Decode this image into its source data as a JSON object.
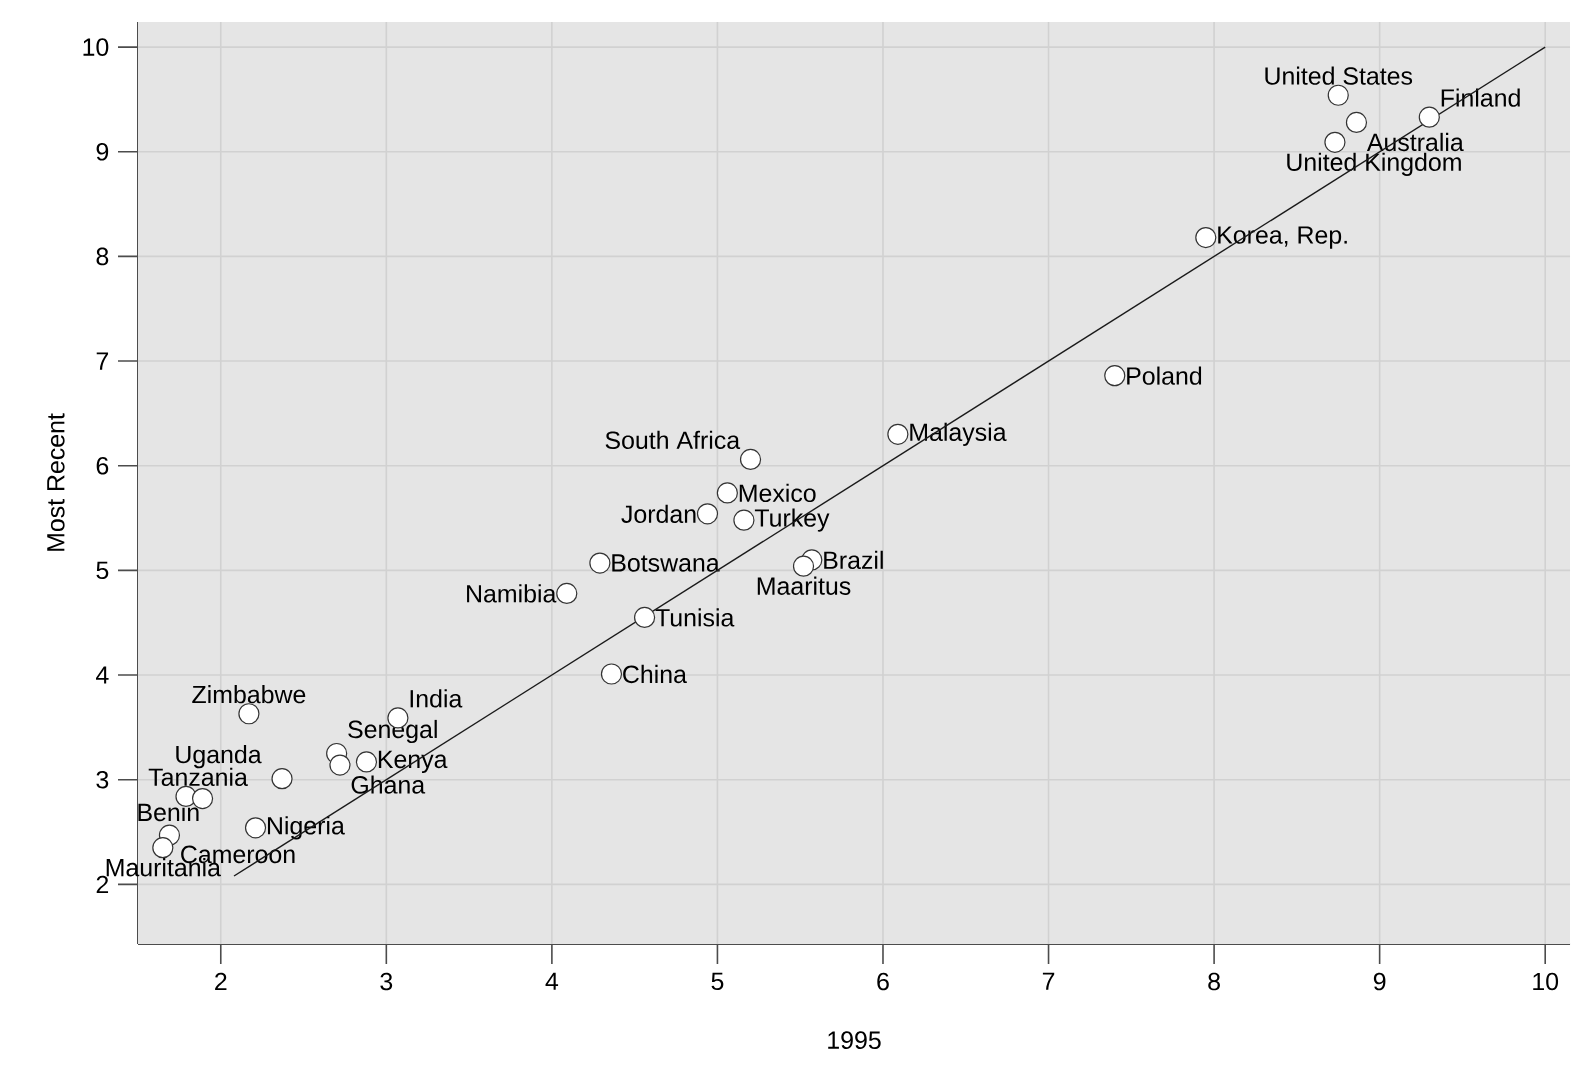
{
  "chart_data": {
    "type": "scatter",
    "xlabel": "1995",
    "ylabel": "Most Recent",
    "xlim": [
      1.5,
      10.15
    ],
    "ylim": [
      1.43,
      10.24
    ],
    "xticks": [
      2,
      3,
      4,
      5,
      6,
      7,
      8,
      9,
      10
    ],
    "yticks": [
      2,
      3,
      4,
      5,
      6,
      7,
      8,
      9,
      10
    ],
    "grid": true,
    "series": [
      {
        "name": "United States",
        "color": "#ffffff",
        "marker": "circle",
        "x": [
          8.75
        ],
        "values": [
          9.54
        ]
      },
      {
        "name": "Finland",
        "color": "#ffffff",
        "marker": "circle",
        "x": [
          9.3
        ],
        "values": [
          9.33
        ]
      },
      {
        "name": "Australia",
        "color": "#ffffff",
        "marker": "circle",
        "x": [
          8.86
        ],
        "values": [
          9.28
        ]
      },
      {
        "name": "United Kingdom",
        "color": "#ffffff",
        "marker": "circle",
        "x": [
          8.73
        ],
        "values": [
          9.09
        ]
      },
      {
        "name": "Korea, Rep.",
        "color": "#ffffff",
        "marker": "circle",
        "x": [
          7.95
        ],
        "values": [
          8.18
        ]
      },
      {
        "name": "Poland",
        "color": "#ffffff",
        "marker": "circle",
        "x": [
          7.4
        ],
        "values": [
          6.86
        ]
      },
      {
        "name": "Malaysia",
        "color": "#ffffff",
        "marker": "circle",
        "x": [
          6.09
        ],
        "values": [
          6.3
        ]
      },
      {
        "name": "South Africa",
        "color": "#ffffff",
        "marker": "circle",
        "x": [
          5.2
        ],
        "values": [
          6.06
        ]
      },
      {
        "name": "Mexico",
        "color": "#ffffff",
        "marker": "circle",
        "x": [
          5.06
        ],
        "values": [
          5.74
        ]
      },
      {
        "name": "Jordan",
        "color": "#ffffff",
        "marker": "circle",
        "x": [
          4.94
        ],
        "values": [
          5.54
        ]
      },
      {
        "name": "Turkey",
        "color": "#ffffff",
        "marker": "circle",
        "x": [
          5.16
        ],
        "values": [
          5.48
        ]
      },
      {
        "name": "Botswana",
        "color": "#ffffff",
        "marker": "circle",
        "x": [
          4.29
        ],
        "values": [
          5.07
        ]
      },
      {
        "name": "Brazil",
        "color": "#ffffff",
        "marker": "circle",
        "x": [
          5.57
        ],
        "values": [
          5.1
        ]
      },
      {
        "name": "Maaritus",
        "color": "#ffffff",
        "marker": "circle",
        "x": [
          5.52
        ],
        "values": [
          5.04
        ]
      },
      {
        "name": "Namibia",
        "color": "#ffffff",
        "marker": "circle",
        "x": [
          4.09
        ],
        "values": [
          4.78
        ]
      },
      {
        "name": "Tunisia",
        "color": "#ffffff",
        "marker": "circle",
        "x": [
          4.56
        ],
        "values": [
          4.55
        ]
      },
      {
        "name": "China",
        "color": "#ffffff",
        "marker": "circle",
        "x": [
          4.36
        ],
        "values": [
          4.01
        ]
      },
      {
        "name": "Zimbabwe",
        "color": "#ffffff",
        "marker": "circle",
        "x": [
          2.17
        ],
        "values": [
          3.63
        ]
      },
      {
        "name": "India",
        "color": "#ffffff",
        "marker": "circle",
        "x": [
          3.07
        ],
        "values": [
          3.59
        ]
      },
      {
        "name": "Uganda",
        "color": "#ffffff",
        "marker": "circle",
        "x": [
          2.37
        ],
        "values": [
          3.01
        ]
      },
      {
        "name": "Senegal",
        "color": "#ffffff",
        "marker": "circle",
        "x": [
          2.7
        ],
        "values": [
          3.25
        ]
      },
      {
        "name": "Ghana",
        "color": "#ffffff",
        "marker": "circle",
        "x": [
          2.72
        ],
        "values": [
          3.14
        ]
      },
      {
        "name": "Kenya",
        "color": "#ffffff",
        "marker": "circle",
        "x": [
          2.88
        ],
        "values": [
          3.17
        ]
      },
      {
        "name": "Tanzania",
        "color": "#ffffff",
        "marker": "circle",
        "x": [
          1.79
        ],
        "values": [
          2.84
        ]
      },
      {
        "name": "Benin",
        "color": "#ffffff",
        "marker": "circle",
        "x": [
          1.89
        ],
        "values": [
          2.82
        ]
      },
      {
        "name": "Nigeria",
        "color": "#ffffff",
        "marker": "circle",
        "x": [
          2.21
        ],
        "values": [
          2.54
        ]
      },
      {
        "name": "Cameroon",
        "color": "#ffffff",
        "marker": "circle",
        "x": [
          1.69
        ],
        "values": [
          2.47
        ]
      },
      {
        "name": "Mauritania",
        "color": "#ffffff",
        "marker": "circle",
        "x": [
          1.65
        ],
        "values": [
          2.35
        ]
      },
      {
        "type": "line",
        "marker": "none",
        "color": "#1a1a1a",
        "x": [
          2.08,
          10
        ],
        "values": [
          2.08,
          10
        ]
      }
    ]
  }
}
